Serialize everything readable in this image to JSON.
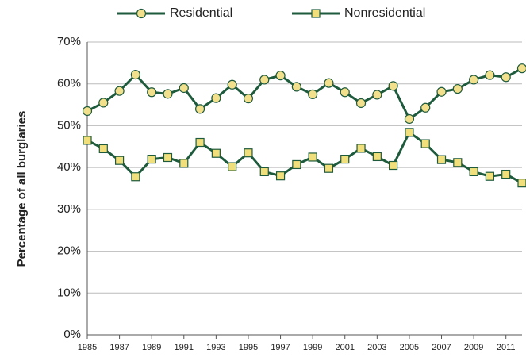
{
  "chart_data": {
    "type": "line",
    "y_label": "Percentage of all burglaries",
    "x": [
      1985,
      1986,
      1987,
      1988,
      1989,
      1990,
      1991,
      1992,
      1993,
      1994,
      1995,
      1996,
      1997,
      1998,
      1999,
      2000,
      2001,
      2002,
      2003,
      2004,
      2005,
      2006,
      2007,
      2008,
      2009,
      2010,
      2011,
      2012
    ],
    "xlim": [
      1985,
      2012
    ],
    "xticks": [
      1985,
      1987,
      1989,
      1991,
      1993,
      1995,
      1997,
      1999,
      2001,
      2003,
      2005,
      2007,
      2009,
      2011
    ],
    "ylim": [
      0,
      70
    ],
    "yticks": [
      {
        "value": 0,
        "label": "0%"
      },
      {
        "value": 10,
        "label": "10%"
      },
      {
        "value": 20,
        "label": "20%"
      },
      {
        "value": 30,
        "label": "30%"
      },
      {
        "value": 40,
        "label": "40%"
      },
      {
        "value": 50,
        "label": "50%"
      },
      {
        "value": 60,
        "label": "60%"
      },
      {
        "value": 70,
        "label": "70%"
      }
    ],
    "grid": true,
    "legend": "top",
    "series": [
      {
        "name": "Residential",
        "color": "#1e5a3c",
        "marker": "circle",
        "marker_color": "#f3e08c",
        "values": [
          53.5,
          55.5,
          58.3,
          62.2,
          58,
          57.6,
          59,
          54,
          56.6,
          59.8,
          56.5,
          61,
          62,
          59.3,
          57.5,
          60.2,
          58,
          55.4,
          57.4,
          59.5,
          51.6,
          54.3,
          58.1,
          58.8,
          61,
          62.1,
          61.6,
          63.7
        ]
      },
      {
        "name": "Nonresidential",
        "color": "#1e5a3c",
        "marker": "square",
        "marker_color": "#f0df7a",
        "values": [
          46.5,
          44.5,
          41.7,
          37.8,
          42,
          42.4,
          41,
          46,
          43.4,
          40.2,
          43.5,
          39,
          38,
          40.7,
          42.5,
          39.8,
          42,
          44.6,
          42.6,
          40.5,
          48.4,
          45.7,
          41.9,
          41.2,
          39,
          37.9,
          38.4,
          36.3
        ]
      }
    ]
  }
}
